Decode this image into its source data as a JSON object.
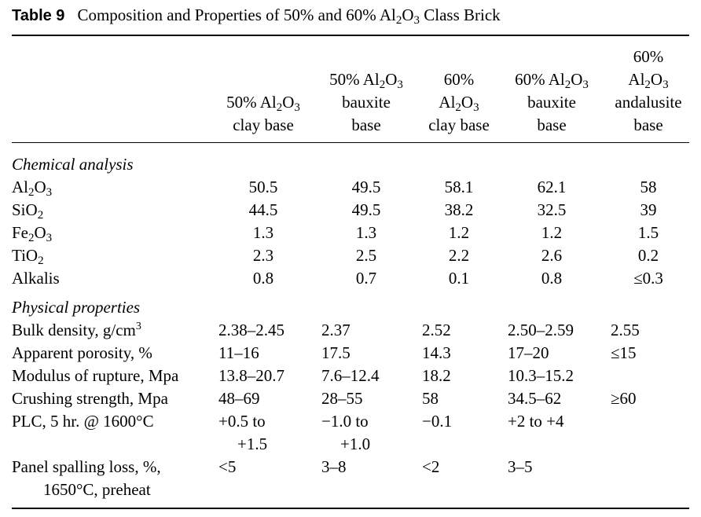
{
  "table": {
    "label": "Table 9",
    "title": "Composition and Properties of 50% and 60% Al2O3 Class Brick",
    "columns": [
      "50% Al2O3 clay base",
      "50% Al2O3 bauxite base",
      "60% Al2O3 clay base",
      "60% Al2O3 bauxite base",
      "60% Al2O3 andalusite base"
    ],
    "sections": [
      {
        "heading": "Chemical analysis",
        "rows": [
          {
            "label": "Al2O3",
            "values": [
              "50.5",
              "49.5",
              "58.1",
              "62.1",
              "58"
            ]
          },
          {
            "label": "SiO2",
            "values": [
              "44.5",
              "49.5",
              "38.2",
              "32.5",
              "39"
            ]
          },
          {
            "label": "Fe2O3",
            "values": [
              "1.3",
              "1.3",
              "1.2",
              "1.2",
              "1.5"
            ]
          },
          {
            "label": "TiO2",
            "values": [
              "2.3",
              "2.5",
              "2.2",
              "2.6",
              "0.2"
            ]
          },
          {
            "label": "Alkalis",
            "values": [
              "0.8",
              "0.7",
              "0.1",
              "0.8",
              "≤0.3"
            ]
          }
        ]
      },
      {
        "heading": "Physical properties",
        "rows": [
          {
            "label": "Bulk density, g/cm3",
            "values": [
              "2.38–2.45",
              "2.37",
              "2.52",
              "2.50–2.59",
              "2.55"
            ]
          },
          {
            "label": "Apparent porosity, %",
            "values": [
              "11–16",
              "17.5",
              "14.3",
              "17–20",
              "≤15"
            ]
          },
          {
            "label": "Modulus of rupture, Mpa",
            "values": [
              "13.8–20.7",
              "7.6–12.4",
              "18.2",
              "10.3–15.2",
              ""
            ]
          },
          {
            "label": "Crushing strength, Mpa",
            "values": [
              "48–69",
              "28–55",
              "58",
              "34.5–62",
              "≥60"
            ]
          },
          {
            "label": "PLC, 5 hr. @ 1600°C",
            "values": [
              "+0.5 to",
              "−1.0 to",
              "−0.1",
              "+2 to +4",
              ""
            ]
          },
          {
            "label": "",
            "values": [
              "+1.5",
              "+1.0",
              "",
              "",
              ""
            ]
          },
          {
            "label": "Panel spalling loss, %,",
            "values": [
              "<5",
              "3–8",
              "<2",
              "3–5",
              ""
            ]
          },
          {
            "label": "1650°C, preheat",
            "values": [
              "",
              "",
              "",
              "",
              ""
            ]
          }
        ]
      }
    ]
  }
}
